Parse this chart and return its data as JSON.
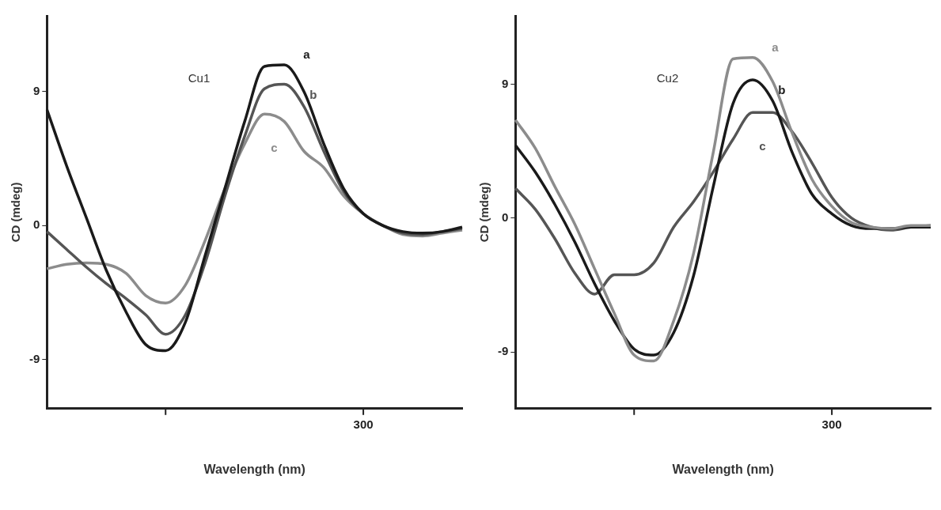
{
  "chart_data": [
    {
      "type": "line",
      "xlabel": "Wavelength (nm)",
      "ylabel": "CD (mdeg)",
      "annotations": [
        "Cu1",
        "300"
      ],
      "categories": [
        null,
        null,
        null,
        null,
        null,
        null,
        null,
        null,
        null,
        null,
        null,
        null,
        null,
        null,
        null,
        null,
        null,
        null,
        null,
        null,
        null,
        null
      ],
      "ylim": [
        -12.3,
        14.1
      ],
      "yticks": [
        -9,
        0,
        9
      ],
      "grid": false,
      "legend": false,
      "marker": "none",
      "line_style": "solid",
      "series": [
        {
          "name": "a",
          "color": "#1a1a1a",
          "values": [
            7.8,
            4.0,
            0.5,
            -3.0,
            -5.8,
            -8.0,
            -8.4,
            -6.5,
            -2.0,
            2.5,
            7.0,
            10.7,
            10.8,
            9.0,
            5.5,
            2.5,
            0.8,
            0.0,
            -0.4,
            -0.5,
            -0.4,
            -0.1
          ]
        },
        {
          "name": "b",
          "color": "#555555",
          "values": [
            -0.4,
            -1.6,
            -2.8,
            -3.9,
            -4.9,
            -6.0,
            -7.3,
            -6.0,
            -2.5,
            2.0,
            6.0,
            9.2,
            9.5,
            8.0,
            5.0,
            2.3,
            0.8,
            0.0,
            -0.5,
            -0.6,
            -0.4,
            -0.2
          ]
        },
        {
          "name": "c",
          "color": "#8c8c8c",
          "values": [
            -2.9,
            -2.6,
            -2.5,
            -2.6,
            -3.2,
            -4.7,
            -5.2,
            -4.0,
            -1.0,
            2.5,
            5.5,
            7.5,
            7.0,
            5.0,
            3.9,
            2.0,
            0.8,
            0.0,
            -0.6,
            -0.7,
            -0.5,
            -0.3
          ]
        }
      ]
    },
    {
      "type": "line",
      "xlabel": "Wavelength (nm)",
      "ylabel": "CD (mdeg)",
      "annotations": [
        "Cu2",
        "300"
      ],
      "categories": [
        null,
        null,
        null,
        null,
        null,
        null,
        null,
        null,
        null,
        null,
        null,
        null,
        null,
        null,
        null,
        null,
        null,
        null,
        null,
        null,
        null,
        null
      ],
      "ylim": [
        -12.8,
        13.6
      ],
      "yticks": [
        -9,
        0,
        9
      ],
      "grid": false,
      "legend": false,
      "marker": "none",
      "line_style": "solid",
      "series": [
        {
          "name": "a",
          "color": "#8c8c8c",
          "values": [
            6.6,
            4.7,
            2.1,
            -0.4,
            -3.4,
            -6.4,
            -9.2,
            -9.6,
            -6.9,
            -2.4,
            4.4,
            10.7,
            10.8,
            9.2,
            5.7,
            2.6,
            0.8,
            -0.3,
            -0.6,
            -0.7,
            -0.5,
            -0.5
          ]
        },
        {
          "name": "b",
          "color": "#1a1a1a",
          "values": [
            4.9,
            3.1,
            0.9,
            -1.6,
            -4.4,
            -6.9,
            -8.8,
            -9.2,
            -7.7,
            -3.9,
            2.1,
            7.7,
            9.3,
            7.9,
            4.4,
            1.6,
            0.3,
            -0.5,
            -0.7,
            -0.7,
            -0.6,
            -0.6
          ]
        },
        {
          "name": "c",
          "color": "#555555",
          "values": [
            2.0,
            0.6,
            -1.4,
            -3.7,
            -5.1,
            -3.8,
            -3.8,
            -3.0,
            -0.6,
            1.1,
            3.1,
            5.3,
            7.1,
            7.1,
            5.8,
            3.7,
            1.4,
            0.0,
            -0.6,
            -0.8,
            -0.6,
            -0.5
          ]
        }
      ]
    }
  ]
}
